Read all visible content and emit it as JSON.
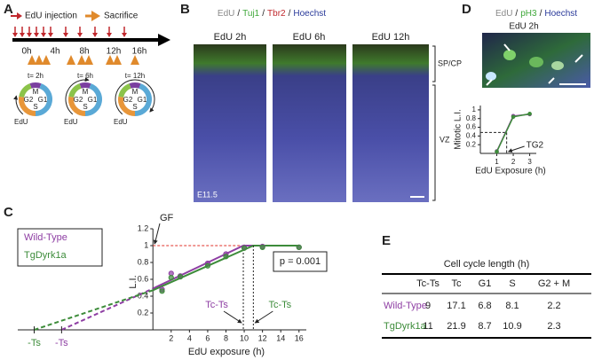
{
  "panel_labels": [
    "A",
    "B",
    "C",
    "D",
    "E"
  ],
  "panel_a": {
    "legend": [
      "EdU injection",
      "Sacrifice"
    ],
    "timeline_labels": [
      "0h",
      "4h",
      "8h",
      "12h",
      "16h"
    ],
    "cycles": [
      "t= 2h",
      "t= 6h",
      "t= 12h"
    ],
    "phases": [
      "M",
      "G2",
      "G1",
      "S"
    ],
    "marker": "EdU"
  },
  "panel_b": {
    "stains": [
      "EdU",
      "Tuj1",
      "Tbr2",
      "Hoechst"
    ],
    "separator": "/",
    "columns": [
      "EdU 2h",
      "EdU 6h",
      "EdU 12h"
    ],
    "stage": "E11.5",
    "layers": [
      "SP/CP",
      "VZ"
    ]
  },
  "panel_d": {
    "stains": [
      "EdU",
      "pH3",
      "Hoechst"
    ],
    "separator": "/",
    "image_label": "EdU 2h"
  },
  "chart_data": [
    {
      "type": "scatter",
      "xlabel": "EdU exposure (h)",
      "ylabel": "L.I.",
      "xlim": [
        -14.8,
        16.8
      ],
      "ylim": [
        0,
        1.2
      ],
      "xticks": [
        2,
        4,
        6,
        8,
        10,
        12,
        14,
        16
      ],
      "yticks": [
        0.2,
        0.4,
        0.6,
        0.8,
        1,
        1.2
      ],
      "series": [
        {
          "name": "Wild-Type",
          "color": "#8e3ea3",
          "x": [
            1,
            2,
            3,
            6,
            8,
            10,
            12,
            16
          ],
          "values": [
            0.48,
            0.67,
            0.64,
            0.79,
            0.9,
            0.98,
            0.99,
            0.98
          ]
        },
        {
          "name": "TgDyrk1a",
          "color": "#3d8c3a",
          "x": [
            1,
            2,
            3,
            6,
            8,
            10,
            12,
            16
          ],
          "values": [
            0.46,
            0.62,
            0.63,
            0.76,
            0.87,
            0.97,
            0.98,
            0.98
          ]
        }
      ],
      "fits": [
        {
          "color": "#8e3ea3",
          "x": [
            -10,
            0,
            9.9,
            16
          ],
          "values": [
            0,
            0.49,
            1,
            1
          ],
          "start_label": "-Ts",
          "end_label": "Tc-Ts"
        },
        {
          "color": "#3d8c3a",
          "x": [
            -13,
            0,
            11,
            16
          ],
          "values": [
            0,
            0.47,
            1,
            1
          ],
          "start_label": "-Ts",
          "end_label": "Tc-Ts"
        }
      ],
      "reference_line": 1,
      "reference_label": "GF",
      "p_value_label": "p = 0.001"
    },
    {
      "type": "line",
      "xlabel": "EdU Exposure (h)",
      "ylabel": "Mitotic L.I.",
      "xlim": [
        0,
        3.4
      ],
      "ylim": [
        0,
        1.1
      ],
      "xticks": [
        1,
        2,
        3
      ],
      "yticks": [
        0.2,
        0.4,
        0.6,
        0.8,
        1
      ],
      "series": [
        {
          "color": "#8e3ea3",
          "x": [
            1,
            2,
            3
          ],
          "values": [
            0.05,
            0.86,
            0.9
          ]
        },
        {
          "color": "#3d8c3a",
          "x": [
            1,
            2,
            3
          ],
          "values": [
            0.04,
            0.84,
            0.91
          ]
        }
      ],
      "threshold": {
        "label": "TG2",
        "x": 1.6,
        "y": 0.48
      }
    }
  ],
  "table": {
    "title": "Cell cycle length (h)",
    "header": [
      "Tc-Ts",
      "Tc",
      "G1",
      "S",
      "G2 + M"
    ],
    "rows": [
      [
        "Wild-Type",
        9,
        17.1,
        6.8,
        8.1,
        2.2
      ],
      [
        "TgDyrk1a",
        11,
        21.9,
        8.7,
        10.9,
        2.3
      ]
    ],
    "row_colors": [
      "#8e3ea3",
      "#3d8c3a"
    ]
  }
}
